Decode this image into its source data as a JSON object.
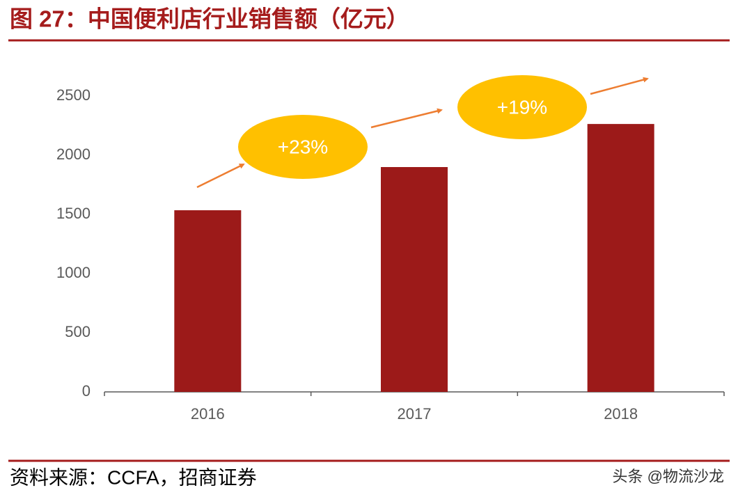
{
  "chart_data": {
    "type": "bar",
    "title": "图 27：中国便利店行业销售额（亿元）",
    "categories": [
      "2016",
      "2017",
      "2018"
    ],
    "values": [
      1535,
      1900,
      2264
    ],
    "color": "#9c1a19",
    "ylim": [
      0,
      2500
    ],
    "yticks": [
      0,
      500,
      1000,
      1500,
      2000,
      2500
    ],
    "grid": false,
    "annotations": [
      "+23%",
      "+19%"
    ],
    "annotation_color": "#ffc000",
    "arrow_color": "#ed7d31",
    "source": "资料来源：CCFA，招商证券",
    "watermark": "头条 @物流沙龙"
  }
}
